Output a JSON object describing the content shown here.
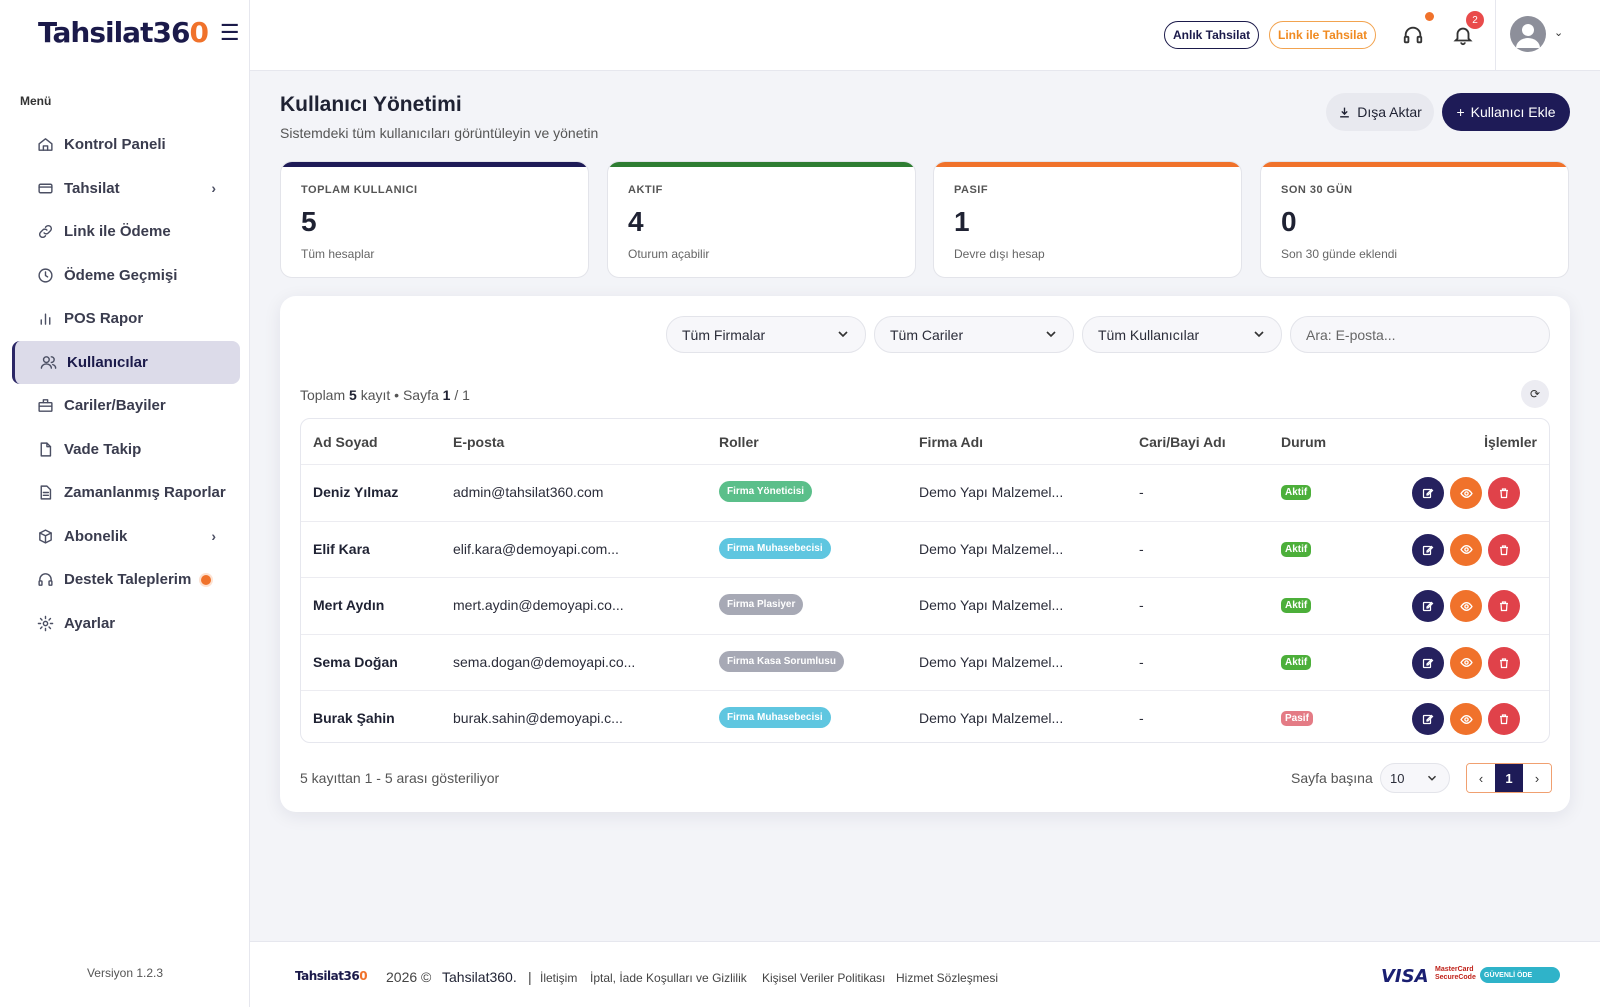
{
  "app": {
    "logo_main": "Tahsilat36",
    "logo_accent": "0"
  },
  "sidebar": {
    "menu_title": "Menü",
    "items": [
      {
        "label": "Kontrol Paneli",
        "icon": "home-icon"
      },
      {
        "label": "Tahsilat",
        "icon": "card-icon",
        "has_chevron": true
      },
      {
        "label": "Link ile Ödeme",
        "icon": "link-icon"
      },
      {
        "label": "Ödeme Geçmişi",
        "icon": "clock-icon"
      },
      {
        "label": "POS Rapor",
        "icon": "bar-chart-icon"
      },
      {
        "label": "Kullanıcılar",
        "icon": "users-icon",
        "active": true
      },
      {
        "label": "Cariler/Bayiler",
        "icon": "building-icon"
      },
      {
        "label": "Vade Takip",
        "icon": "document-icon"
      },
      {
        "label": "Zamanlanmış Raporlar",
        "icon": "report-icon"
      },
      {
        "label": "Abonelik",
        "icon": "box-icon",
        "has_chevron": true
      },
      {
        "label": "Destek Taleplerim",
        "icon": "headset-icon",
        "has_dot": true
      },
      {
        "label": "Ayarlar",
        "icon": "gear-icon"
      }
    ],
    "version": "Versiyon 1.2.3"
  },
  "topbar": {
    "anlik_label": "Anlık Tahsilat",
    "link_label": "Link ile Tahsilat",
    "notification_count": "2"
  },
  "page": {
    "title": "Kullanıcı Yönetimi",
    "subtitle": "Sistemdeki tüm kullanıcıları görüntüleyin ve yönetin",
    "export_label": "Dışa Aktar",
    "add_label": "Kullanıcı Ekle"
  },
  "stats": [
    {
      "label": "TOPLAM KULLANICI",
      "value": "5",
      "sub": "Tüm hesaplar",
      "color": "#1e1b57"
    },
    {
      "label": "AKTIF",
      "value": "4",
      "sub": "Oturum açabilir",
      "color": "#2e7d32"
    },
    {
      "label": "PASIF",
      "value": "1",
      "sub": "Devre dışı hesap",
      "color": "#f0722b"
    },
    {
      "label": "SON 30 GÜN",
      "value": "0",
      "sub": "Son 30 günde eklendi",
      "color": "#f0722b"
    }
  ],
  "filters": {
    "firms": "Tüm Firmalar",
    "cariler": "Tüm Cariler",
    "users": "Tüm Kullanıcılar",
    "search_placeholder": "Ara: E-posta..."
  },
  "summary": {
    "prefix": "Toplam ",
    "count": "5",
    "middle": " kayıt • Sayfa ",
    "page": "1",
    "suffix": " / 1"
  },
  "table": {
    "headers": [
      "Ad Soyad",
      "E-posta",
      "Roller",
      "Firma Adı",
      "Cari/Bayi Adı",
      "Durum",
      "İşlemler"
    ],
    "rows": [
      {
        "name": "Deniz Yılmaz",
        "email": "admin@tahsilat360.com",
        "role": "Firma Yöneticisi",
        "role_color": "#5bbf8a",
        "firm": "Demo Yapı Malzemel...",
        "cari": "-",
        "status": "Aktif",
        "status_color": "#4caf3a"
      },
      {
        "name": "Elif Kara",
        "email": "elif.kara@demoyapi.com...",
        "role": "Firma Muhasebecisi",
        "role_color": "#5fc6e0",
        "firm": "Demo Yapı Malzemel...",
        "cari": "-",
        "status": "Aktif",
        "status_color": "#4caf3a"
      },
      {
        "name": "Mert Aydın",
        "email": "mert.aydin@demoyapi.co...",
        "role": "Firma Plasiyer",
        "role_color": "#a7a9b5",
        "firm": "Demo Yapı Malzemel...",
        "cari": "-",
        "status": "Aktif",
        "status_color": "#4caf3a"
      },
      {
        "name": "Sema Doğan",
        "email": "sema.dogan@demoyapi.co...",
        "role": "Firma Kasa Sorumlusu",
        "role_color": "#a7a9b5",
        "firm": "Demo Yapı Malzemel...",
        "cari": "-",
        "status": "Aktif",
        "status_color": "#4caf3a"
      },
      {
        "name": "Burak Şahin",
        "email": "burak.sahin@demoyapi.c...",
        "role": "Firma Muhasebecisi",
        "role_color": "#5fc6e0",
        "firm": "Demo Yapı Malzemel...",
        "cari": "-",
        "status": "Pasif",
        "status_color": "#e47b85"
      }
    ]
  },
  "pagination": {
    "info": "5 kayıttan 1 - 5 arası gösteriliyor",
    "per_page_label": "Sayfa başına",
    "per_page_value": "10",
    "current_page": "1"
  },
  "footer": {
    "logo_main": "Tahsilat36",
    "logo_accent": "0",
    "copyright": "2026 ©",
    "brand": "Tahsilat360.",
    "separator": "|",
    "links": [
      "İletişim",
      "İptal, İade Koşulları ve Gizlilik",
      "Kişisel Veriler Politikası",
      "Hizmet Sözleşmesi"
    ],
    "visa": "VISA",
    "mastercard_line1": "MasterCard",
    "mastercard_line2": "SecureCode",
    "secure_badge": "GÜVENLİ ÖDE"
  }
}
